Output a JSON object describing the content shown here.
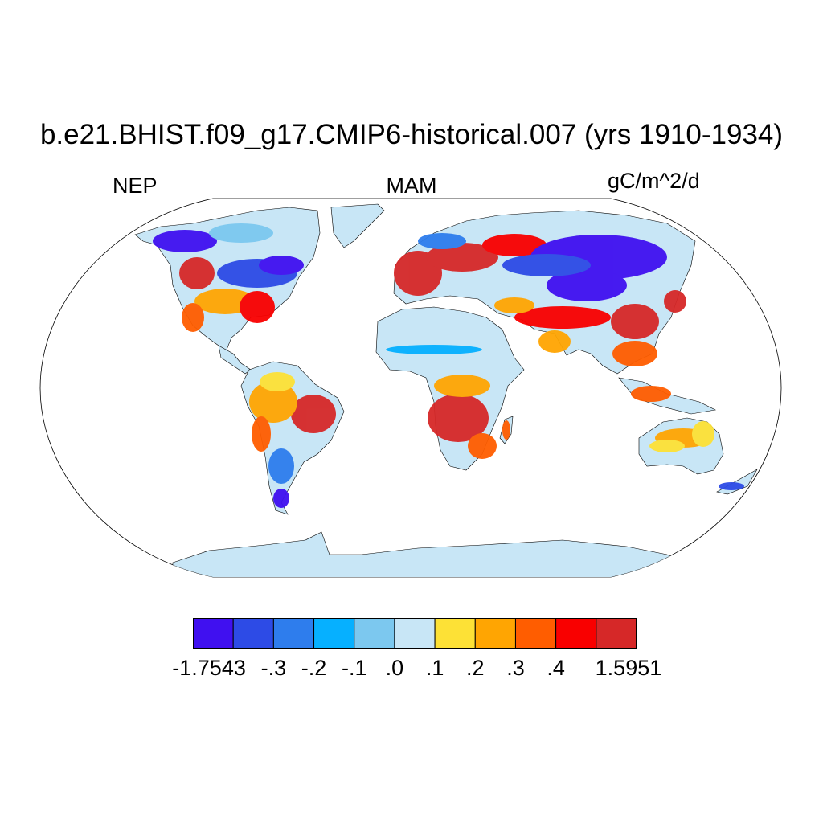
{
  "title": "b.e21.BHIST.f09_g17.CMIP6-historical.007 (yrs 1910-1934)",
  "left_label": "NEP",
  "center_label": "MAM",
  "right_label": "gC/m^2/d",
  "colorbar": {
    "colors": [
      "#4010f0",
      "#2d4be6",
      "#2e7ded",
      "#06b0ff",
      "#7cc8ef",
      "#c8e6f6",
      "#fde136",
      "#ffa502",
      "#ff5d00",
      "#f90000",
      "#d62828"
    ],
    "labels": [
      "-1.7543",
      "-.3",
      "-.2",
      "-.1",
      ".0",
      ".1",
      ".2",
      ".3",
      ".4",
      "1.5951"
    ]
  },
  "map": {
    "projection": "robinson",
    "land_fill": "#c8e6f6",
    "coastline_color": "#000000"
  }
}
